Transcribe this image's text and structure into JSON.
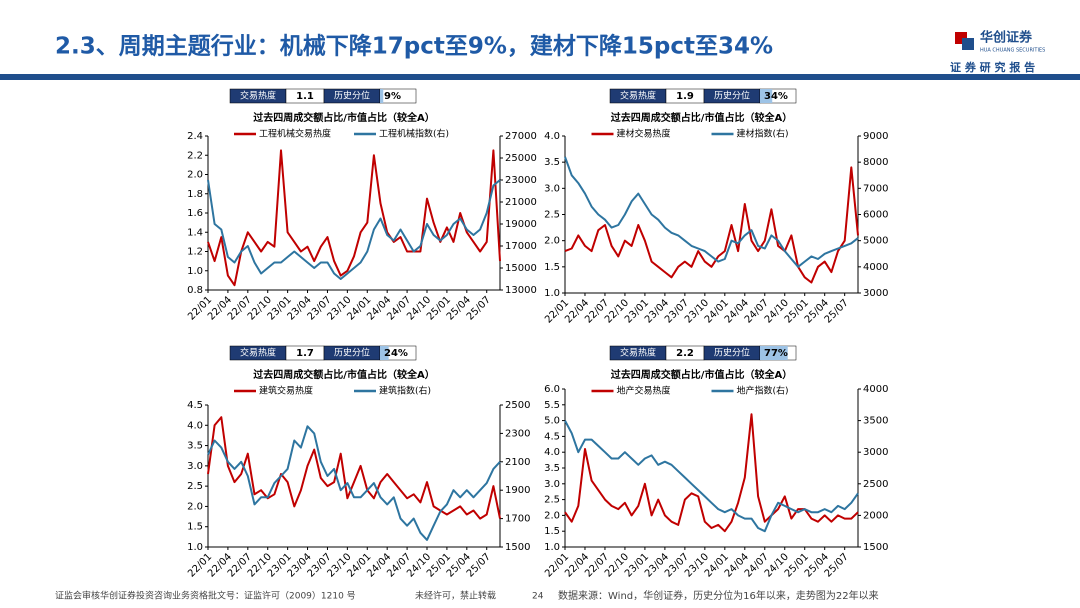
{
  "header": {
    "title": "2.3、周期主题行业：机械下降17pct至9%，建材下降15pct至34%",
    "logo": "华创证券",
    "logo_en": "HUA CHUANG SECURITIES",
    "tagline": "证 券 研 究 报 告"
  },
  "footer": {
    "license": "证监会审核华创证券投资咨询业务资格批文号：证监许可（2009）1210 号",
    "notice": "未经许可，禁止转载",
    "page": "24",
    "source": "数据来源：Wind，华创证券，历史分位为16年以来，走势图为22年以来"
  },
  "chart_data": [
    {
      "type": "line",
      "title": "过去四周成交额占比/市值占比（较全A）",
      "badge": {
        "heat_label": "交易热度",
        "heat": 1.1,
        "percentile_label": "历史分位",
        "percentile": 9,
        "percentile_text": "9%"
      },
      "categories": [
        "22/01",
        null,
        null,
        "22/04",
        null,
        null,
        "22/07",
        null,
        null,
        "22/10",
        null,
        null,
        "23/01",
        null,
        null,
        "23/04",
        null,
        null,
        "23/07",
        null,
        null,
        "23/10",
        null,
        null,
        "24/01",
        null,
        null,
        "24/04",
        null,
        null,
        "24/07",
        null,
        null,
        "24/10",
        null,
        null,
        "25/01",
        null,
        null,
        "25/04",
        null,
        null,
        "25/07",
        null,
        null
      ],
      "ylim": [
        0.8,
        2.4
      ],
      "yticks": [
        0.8,
        {
          "value": 1,
          "label": "1.0"
        },
        1.2,
        1.4,
        1.6,
        1.8,
        {
          "value": 2,
          "label": "2.0"
        },
        2.2,
        2.4
      ],
      "y2lim": [
        13000,
        27000
      ],
      "y2ticks": [
        13000,
        15000,
        17000,
        19000,
        21000,
        23000,
        25000,
        27000
      ],
      "series": [
        {
          "name": "工程机械交易热度",
          "color": "#c00000",
          "values": [
            1.3,
            1.1,
            1.35,
            0.95,
            0.85,
            1.2,
            1.4,
            1.3,
            1.2,
            1.3,
            1.25,
            2.25,
            1.4,
            1.3,
            1.2,
            1.25,
            1.1,
            1.25,
            1.35,
            1.1,
            0.95,
            1.0,
            1.15,
            1.4,
            1.5,
            2.2,
            1.7,
            1.4,
            1.3,
            1.35,
            1.2,
            1.2,
            1.2,
            1.75,
            1.5,
            1.3,
            1.45,
            1.3,
            1.6,
            1.4,
            1.3,
            1.2,
            1.3,
            2.25,
            1.1
          ]
        },
        {
          "name": "工程机械指数(右)",
          "color": "#2e75a0",
          "axis": "y2",
          "values": [
            23000,
            19000,
            18500,
            16000,
            15500,
            16500,
            17000,
            15500,
            14500,
            15000,
            15500,
            15500,
            16000,
            16500,
            16000,
            15500,
            15000,
            15500,
            15500,
            14500,
            14000,
            14500,
            15000,
            15500,
            16500,
            18500,
            19500,
            18000,
            17500,
            18500,
            17500,
            16500,
            17000,
            19000,
            18000,
            17500,
            18000,
            19000,
            19500,
            18500,
            18000,
            18500,
            20000,
            22500,
            23000
          ]
        }
      ]
    },
    {
      "type": "line",
      "title": "过去四周成交额占比/市值占比（较全A）",
      "badge": {
        "heat_label": "交易热度",
        "heat": 1.9,
        "percentile_label": "历史分位",
        "percentile": 34,
        "percentile_text": "34%"
      },
      "categories": [
        "22/01",
        null,
        null,
        "22/04",
        null,
        null,
        "22/07",
        null,
        null,
        "22/10",
        null,
        null,
        "23/01",
        null,
        null,
        "23/04",
        null,
        null,
        "23/07",
        null,
        null,
        "23/10",
        null,
        null,
        "24/01",
        null,
        null,
        "24/04",
        null,
        null,
        "24/07",
        null,
        null,
        "24/10",
        null,
        null,
        "25/01",
        null,
        null,
        "25/04",
        null,
        null,
        "25/07",
        null,
        null
      ],
      "ylim": [
        1,
        4
      ],
      "yticks": [
        {
          "value": 1,
          "label": "1.0"
        },
        1.5,
        {
          "value": 2,
          "label": "2.0"
        },
        2.5,
        {
          "value": 3,
          "label": "3.0"
        },
        3.5,
        {
          "value": 4,
          "label": "4.0"
        }
      ],
      "y2lim": [
        3000,
        9000
      ],
      "y2ticks": [
        3000,
        4000,
        5000,
        6000,
        7000,
        8000,
        9000
      ],
      "series": [
        {
          "name": "建材交易热度",
          "color": "#c00000",
          "values": [
            1.8,
            1.85,
            2.1,
            1.9,
            1.8,
            2.2,
            2.3,
            1.9,
            1.7,
            2.0,
            1.9,
            2.3,
            2.0,
            1.6,
            1.5,
            1.4,
            1.3,
            1.5,
            1.6,
            1.5,
            1.8,
            1.6,
            1.5,
            1.7,
            1.8,
            2.3,
            1.8,
            2.7,
            2.0,
            1.8,
            2.0,
            2.6,
            1.9,
            1.8,
            2.1,
            1.5,
            1.3,
            1.2,
            1.5,
            1.6,
            1.4,
            1.8,
            2.0,
            3.4,
            2.1
          ]
        },
        {
          "name": "建材指数(右)",
          "color": "#2e75a0",
          "axis": "y2",
          "values": [
            8200,
            7500,
            7200,
            6800,
            6300,
            6000,
            5800,
            5500,
            5600,
            6000,
            6500,
            6800,
            6400,
            6000,
            5800,
            5500,
            5300,
            5200,
            5000,
            4800,
            4700,
            4600,
            4400,
            4200,
            4300,
            5000,
            4900,
            5200,
            5400,
            4800,
            4700,
            5200,
            5000,
            4600,
            4300,
            4000,
            4200,
            4400,
            4300,
            4500,
            4600,
            4700,
            4800,
            4900,
            5100
          ]
        }
      ]
    },
    {
      "type": "line",
      "title": "过去四周成交额占比/市值占比（较全A）",
      "badge": {
        "heat_label": "交易热度",
        "heat": 1.7,
        "percentile_label": "历史分位",
        "percentile": 24,
        "percentile_text": "24%"
      },
      "categories": [
        "22/01",
        null,
        null,
        "22/04",
        null,
        null,
        "22/07",
        null,
        null,
        "22/10",
        null,
        null,
        "23/01",
        null,
        null,
        "23/04",
        null,
        null,
        "23/07",
        null,
        null,
        "23/10",
        null,
        null,
        "24/01",
        null,
        null,
        "24/04",
        null,
        null,
        "24/07",
        null,
        null,
        "24/10",
        null,
        null,
        "25/01",
        null,
        null,
        "25/04",
        null,
        null,
        "25/07",
        null,
        null
      ],
      "ylim": [
        1,
        4.5
      ],
      "yticks": [
        {
          "value": 1,
          "label": "1.0"
        },
        1.5,
        {
          "value": 2,
          "label": "2.0"
        },
        2.5,
        {
          "value": 3,
          "label": "3.0"
        },
        3.5,
        {
          "value": 4,
          "label": "4.0"
        },
        4.5
      ],
      "y2lim": [
        1500,
        2500
      ],
      "y2ticks": [
        1500,
        1700,
        1900,
        2100,
        2300,
        2500
      ],
      "series": [
        {
          "name": "建筑交易热度",
          "color": "#c00000",
          "values": [
            2.8,
            4.0,
            4.2,
            3.0,
            2.6,
            2.8,
            3.3,
            2.3,
            2.4,
            2.2,
            2.3,
            2.8,
            2.6,
            2.0,
            2.4,
            3.0,
            3.4,
            2.7,
            2.5,
            2.6,
            3.3,
            2.2,
            2.6,
            3.0,
            2.4,
            2.2,
            2.6,
            2.8,
            2.6,
            2.4,
            2.2,
            2.3,
            2.1,
            2.6,
            2.0,
            1.9,
            1.8,
            1.9,
            2.0,
            1.8,
            1.9,
            1.7,
            1.8,
            2.5,
            1.7
          ]
        },
        {
          "name": "建筑指数(右)",
          "color": "#2e75a0",
          "axis": "y2",
          "values": [
            2150,
            2250,
            2200,
            2100,
            2050,
            2100,
            2000,
            1800,
            1850,
            1850,
            1950,
            2000,
            2050,
            2250,
            2200,
            2350,
            2300,
            2100,
            2000,
            2050,
            1900,
            1950,
            1850,
            1850,
            1900,
            1950,
            1850,
            1800,
            1850,
            1700,
            1650,
            1700,
            1600,
            1550,
            1650,
            1750,
            1800,
            1900,
            1850,
            1900,
            1850,
            1900,
            1950,
            2050,
            2100
          ]
        }
      ]
    },
    {
      "type": "line",
      "title": "过去四周成交额占比/市值占比（较全A）",
      "badge": {
        "heat_label": "交易热度",
        "heat": 2.2,
        "percentile_label": "历史分位",
        "percentile": 77,
        "percentile_text": "77%"
      },
      "categories": [
        "22/01",
        null,
        null,
        "22/04",
        null,
        null,
        "22/07",
        null,
        null,
        "22/10",
        null,
        null,
        "23/01",
        null,
        null,
        "23/04",
        null,
        null,
        "23/07",
        null,
        null,
        "23/10",
        null,
        null,
        "24/01",
        null,
        null,
        "24/04",
        null,
        null,
        "24/07",
        null,
        null,
        "24/10",
        null,
        null,
        "25/01",
        null,
        null,
        "25/04",
        null,
        null,
        "25/07",
        null,
        null
      ],
      "ylim": [
        1,
        6
      ],
      "yticks": [
        {
          "value": 1,
          "label": "1.0"
        },
        1.5,
        {
          "value": 2,
          "label": "2.0"
        },
        2.5,
        {
          "value": 3,
          "label": "3.0"
        },
        3.5,
        {
          "value": 4,
          "label": "4.0"
        },
        4.5,
        {
          "value": 5,
          "label": "5.0"
        },
        5.5,
        {
          "value": 6,
          "label": "6.0"
        }
      ],
      "y2lim": [
        1500,
        4000
      ],
      "y2ticks": [
        1500,
        2000,
        2500,
        3000,
        3500,
        4000
      ],
      "series": [
        {
          "name": "地产交易热度",
          "color": "#c00000",
          "values": [
            2.1,
            1.8,
            2.3,
            4.1,
            3.1,
            2.8,
            2.5,
            2.3,
            2.2,
            2.4,
            2.0,
            2.3,
            3.0,
            2.0,
            2.5,
            2.0,
            1.8,
            1.7,
            2.5,
            2.7,
            2.6,
            1.8,
            1.6,
            1.7,
            1.5,
            1.8,
            2.4,
            3.2,
            5.2,
            2.6,
            1.8,
            2.0,
            2.2,
            2.6,
            1.9,
            2.2,
            2.2,
            1.9,
            1.8,
            2.0,
            1.8,
            2.0,
            1.9,
            1.9,
            2.1
          ]
        },
        {
          "name": "地产指数(右)",
          "color": "#2e75a0",
          "axis": "y2",
          "values": [
            3500,
            3300,
            3000,
            3200,
            3200,
            3100,
            3000,
            2900,
            2900,
            3000,
            2900,
            2800,
            2900,
            2950,
            2800,
            2850,
            2800,
            2700,
            2600,
            2500,
            2400,
            2300,
            2200,
            2100,
            2050,
            2100,
            2000,
            1950,
            1950,
            1800,
            1750,
            2000,
            2200,
            2150,
            2100,
            2050,
            2100,
            2050,
            2050,
            2100,
            2050,
            2150,
            2100,
            2200,
            2350
          ]
        }
      ]
    }
  ]
}
